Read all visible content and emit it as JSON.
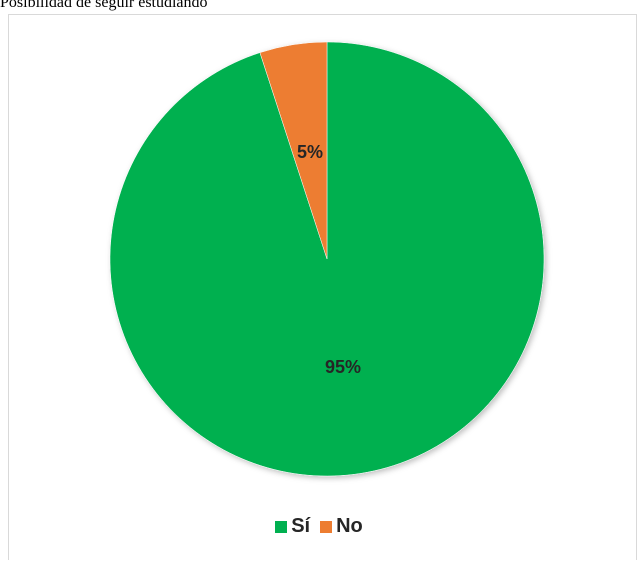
{
  "title": "Posibilidad de seguir estudiando",
  "chart_data": {
    "type": "pie",
    "title": "",
    "categories": [
      "Sí",
      "No"
    ],
    "values": [
      95,
      5
    ],
    "labels": [
      "95%",
      "5%"
    ],
    "colors": [
      "#00b050",
      "#ed7d31"
    ],
    "start_angle_deg": 0,
    "direction": "counterclockwise",
    "legend_position": "bottom"
  }
}
